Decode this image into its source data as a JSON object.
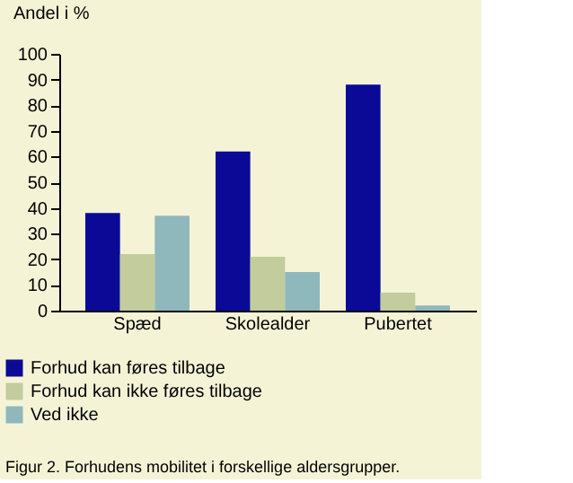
{
  "chart_data": {
    "type": "bar",
    "ylabel": "Andel i %",
    "categories": [
      "Spæd",
      "Skolealder",
      "Pubertet"
    ],
    "series": [
      {
        "name": "Forhud kan føres tilbage",
        "color": "#0a0a96",
        "values": [
          38,
          62,
          88
        ]
      },
      {
        "name": "Forhud kan ikke føres tilbage",
        "color": "#c2cc9c",
        "values": [
          22,
          21,
          7
        ]
      },
      {
        "name": "Ved ikke",
        "color": "#8fb8bc",
        "values": [
          37,
          15,
          2
        ]
      }
    ],
    "ylim": [
      0,
      100
    ],
    "yticks": [
      0,
      10,
      20,
      30,
      40,
      50,
      60,
      70,
      80,
      90,
      100
    ],
    "grid": false,
    "legend": "bottom left",
    "annotations": [
      "Figur 2.  Forhudens mobilitet i forskellige aldersgrupper."
    ]
  }
}
